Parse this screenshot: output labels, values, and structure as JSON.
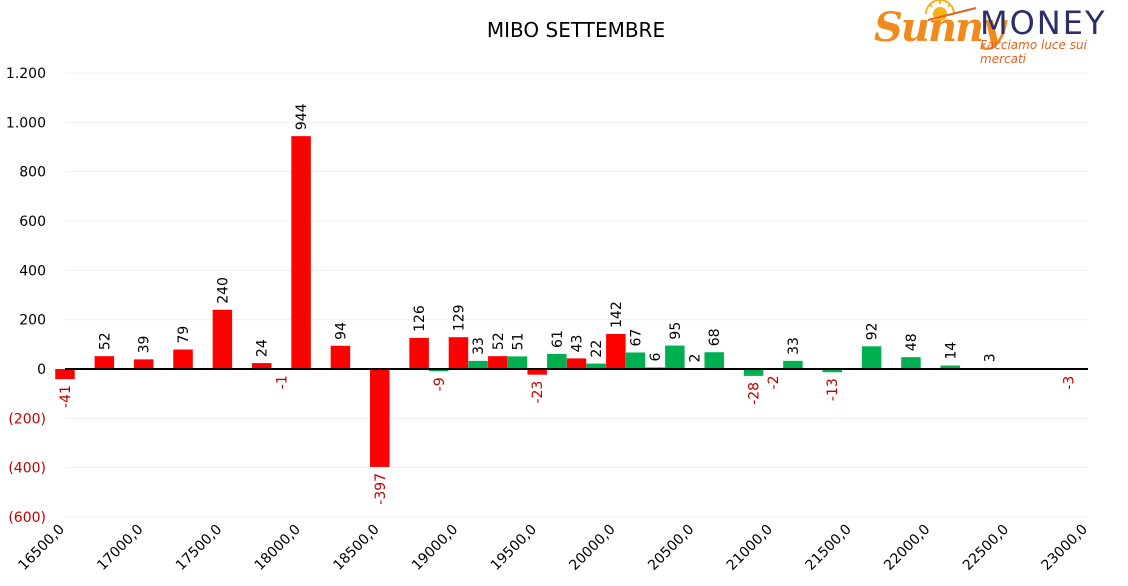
{
  "logo": {
    "brand_script": "Sunny",
    "brand_word": "MONEY",
    "tagline": "Facciamo luce sui mercati"
  },
  "colors": {
    "negative_bar": "#ff0000",
    "positive_bar": "#00b050",
    "negative_label": "#c00000",
    "axis": "#000000",
    "grid": "#f0f0f0"
  },
  "chart_data": {
    "type": "bar",
    "title": "MIBO SETTEMBRE",
    "xlabel": "",
    "ylabel": "",
    "ylim": [
      -600,
      1200
    ],
    "yticks": [
      {
        "value": 1200,
        "label": "1.200"
      },
      {
        "value": 1000,
        "label": "1.000"
      },
      {
        "value": 800,
        "label": "800"
      },
      {
        "value": 600,
        "label": "600"
      },
      {
        "value": 400,
        "label": "400"
      },
      {
        "value": 200,
        "label": "200"
      },
      {
        "value": 0,
        "label": "0"
      },
      {
        "value": -200,
        "label": "(200)"
      },
      {
        "value": -400,
        "label": "(400)"
      },
      {
        "value": -600,
        "label": "(600)"
      }
    ],
    "xlim": [
      16500,
      23000
    ],
    "xticks": [
      {
        "value": 16500,
        "label": "16500,0"
      },
      {
        "value": 17000,
        "label": "17000,0"
      },
      {
        "value": 17500,
        "label": "17500,0"
      },
      {
        "value": 18000,
        "label": "18000,0"
      },
      {
        "value": 18500,
        "label": "18500,0"
      },
      {
        "value": 19000,
        "label": "19000,0"
      },
      {
        "value": 19500,
        "label": "19500,0"
      },
      {
        "value": 20000,
        "label": "20000,0"
      },
      {
        "value": 20500,
        "label": "20500,0"
      },
      {
        "value": 21000,
        "label": "21000,0"
      },
      {
        "value": 21500,
        "label": "21500,0"
      },
      {
        "value": 22000,
        "label": "22000,0"
      },
      {
        "value": 22500,
        "label": "22500,0"
      },
      {
        "value": 23000,
        "label": "23000,0"
      }
    ],
    "series": [
      {
        "color": "red",
        "points": [
          {
            "x": 16500,
            "y": -41,
            "label": "-41"
          },
          {
            "x": 16750,
            "y": 52,
            "label": "52"
          },
          {
            "x": 17000,
            "y": 39,
            "label": "39"
          },
          {
            "x": 17250,
            "y": 79,
            "label": "79"
          },
          {
            "x": 17500,
            "y": 240,
            "label": "240"
          },
          {
            "x": 17750,
            "y": 24,
            "label": "24"
          },
          {
            "x": 18000,
            "y": 944,
            "label": "944"
          },
          {
            "x": 18250,
            "y": 94,
            "label": "94"
          },
          {
            "x": 18500,
            "y": -397,
            "label": "-397"
          },
          {
            "x": 18750,
            "y": 126,
            "label": "126"
          },
          {
            "x": 19000,
            "y": 129,
            "label": "129"
          },
          {
            "x": 19250,
            "y": 52,
            "label": "52"
          },
          {
            "x": 19500,
            "y": -23,
            "label": "-23"
          },
          {
            "x": 19750,
            "y": 43,
            "label": "43"
          },
          {
            "x": 20000,
            "y": 142,
            "label": "142"
          },
          {
            "x": 20250,
            "y": 6,
            "label": "6"
          }
        ]
      },
      {
        "color": "green",
        "points": [
          {
            "x": 17875,
            "y": -1,
            "label": "-1"
          },
          {
            "x": 18875,
            "y": -9,
            "label": "-9"
          },
          {
            "x": 19125,
            "y": 33,
            "label": "33"
          },
          {
            "x": 19375,
            "y": 51,
            "label": "51"
          },
          {
            "x": 19625,
            "y": 61,
            "label": "61"
          },
          {
            "x": 19875,
            "y": 22,
            "label": "22"
          },
          {
            "x": 20125,
            "y": 67,
            "label": "67"
          },
          {
            "x": 20375,
            "y": 95,
            "label": "95"
          },
          {
            "x": 20500,
            "y": 2,
            "label": "2"
          },
          {
            "x": 20625,
            "y": 68,
            "label": "68"
          },
          {
            "x": 20875,
            "y": -28,
            "label": "-28"
          },
          {
            "x": 21000,
            "y": -2,
            "label": "-2"
          },
          {
            "x": 21125,
            "y": 33,
            "label": "33"
          },
          {
            "x": 21375,
            "y": -13,
            "label": "-13"
          },
          {
            "x": 21625,
            "y": 92,
            "label": "92"
          },
          {
            "x": 21875,
            "y": 48,
            "label": "48"
          },
          {
            "x": 22125,
            "y": 14,
            "label": "14"
          },
          {
            "x": 22375,
            "y": 3,
            "label": "3"
          },
          {
            "x": 22875,
            "y": -3,
            "label": "-3"
          }
        ]
      }
    ],
    "grid": true,
    "legend": "none"
  }
}
